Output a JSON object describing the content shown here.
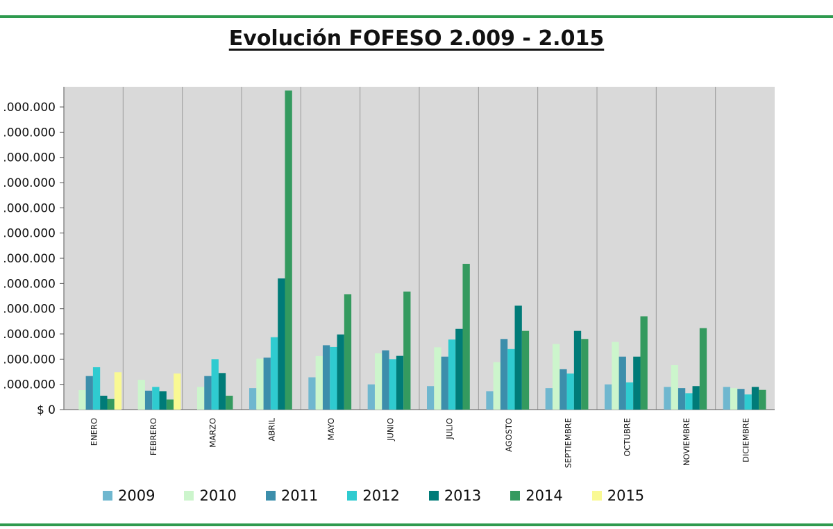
{
  "chart_data": {
    "type": "bar",
    "title": "Evolución FOFESO 2.009 - 2.015",
    "categories": [
      "ENERO",
      "FEBRERO",
      "MARZO",
      "ABRIL",
      "MAYO",
      "JUNIO",
      "JULIO",
      "AGOSTO",
      "SEPTIEMBRE",
      "OCTUBRE",
      "NOVIEMBRE",
      "DICIEMBRE"
    ],
    "y_tick_labels": [
      ".000.000",
      ".000.000",
      ".000.000",
      ".000.000",
      ".000.000",
      ".000.000",
      ".000.000",
      ".000.000",
      ".000.000",
      ".000.000",
      ".000.000",
      ".000.000",
      "$ 0"
    ],
    "ylim": [
      0,
      12.8
    ],
    "grid": true,
    "legend_position": "bottom",
    "series": [
      {
        "name": "2009",
        "color": "#6fb7cf",
        "values": [
          null,
          null,
          null,
          0.85,
          1.28,
          1.0,
          0.93,
          0.73,
          0.85,
          1.0,
          0.9,
          0.9
        ]
      },
      {
        "name": "2010",
        "color": "#ccf5cc",
        "values": [
          0.77,
          1.18,
          0.9,
          2.02,
          2.12,
          2.23,
          2.47,
          1.88,
          2.6,
          2.68,
          1.76,
          0.85
        ]
      },
      {
        "name": "2011",
        "color": "#3c8eab",
        "values": [
          1.33,
          0.75,
          1.33,
          2.06,
          2.55,
          2.35,
          2.1,
          2.8,
          1.6,
          2.1,
          0.85,
          0.82
        ]
      },
      {
        "name": "2012",
        "color": "#2fcbd0",
        "values": [
          1.68,
          0.9,
          2.0,
          2.87,
          2.48,
          2.0,
          2.78,
          2.4,
          1.43,
          1.08,
          0.65,
          0.6
        ]
      },
      {
        "name": "2013",
        "color": "#007b78",
        "values": [
          0.55,
          0.73,
          1.45,
          5.2,
          2.98,
          2.13,
          3.2,
          4.12,
          3.12,
          2.1,
          0.93,
          0.9
        ]
      },
      {
        "name": "2014",
        "color": "#349a5f",
        "values": [
          0.42,
          0.4,
          0.55,
          12.65,
          4.57,
          4.68,
          5.78,
          3.12,
          2.8,
          3.7,
          3.23,
          0.78
        ]
      },
      {
        "name": "2015",
        "color": "#f9f993",
        "values": [
          1.48,
          1.43,
          null,
          null,
          null,
          null,
          null,
          null,
          null,
          null,
          null,
          null
        ]
      }
    ]
  }
}
